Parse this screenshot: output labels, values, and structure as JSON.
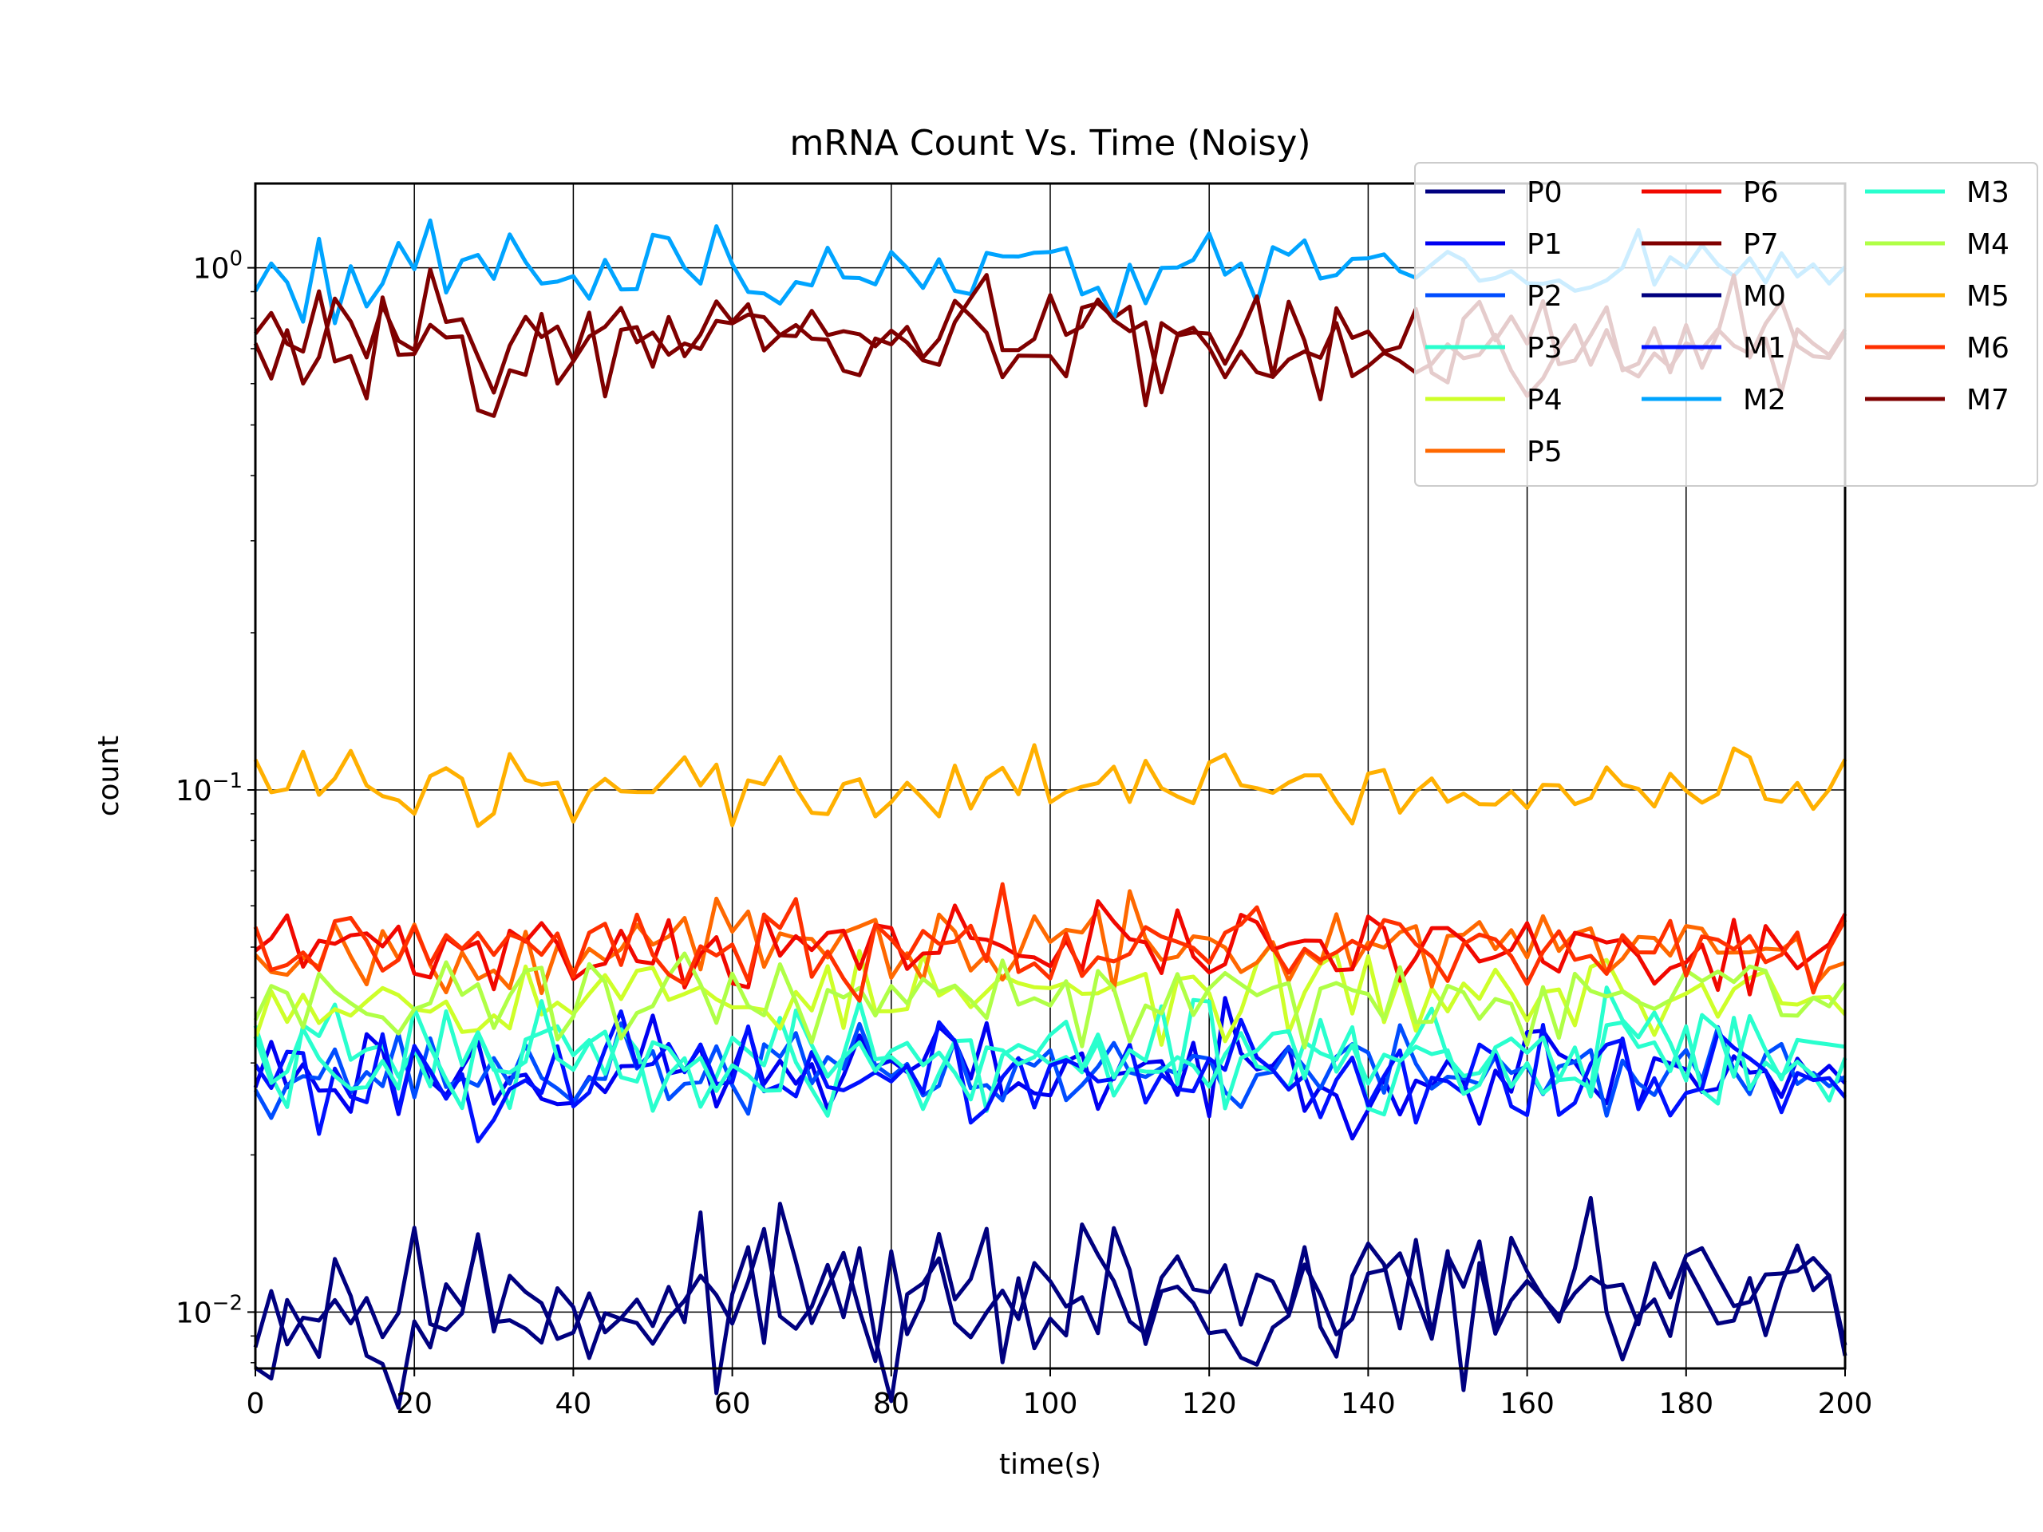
{
  "chart_data": {
    "type": "line",
    "title": "mRNA Count Vs. Time (Noisy)",
    "xlabel": "time(s)",
    "ylabel": "count",
    "xlim": [
      0,
      200
    ],
    "ylim": [
      0.0078,
      1.45
    ],
    "yscale": "log",
    "grid": true,
    "legend_position": "top-right",
    "x_ticks": [
      "0",
      "20",
      "40",
      "60",
      "80",
      "100",
      "120",
      "140",
      "160",
      "180",
      "200"
    ],
    "y_ticks": [
      {
        "value": 0.01,
        "base": "10",
        "exp": "−2"
      },
      {
        "value": 0.1,
        "base": "10",
        "exp": "−1"
      },
      {
        "value": 1,
        "base": "10",
        "exp": "0"
      }
    ],
    "series": [
      {
        "name": "P0",
        "color": "#000080",
        "level": 0.0105,
        "noise": 0.07,
        "seed": 11
      },
      {
        "name": "P1",
        "color": "#0000f1",
        "level": 0.029,
        "noise": 0.05,
        "seed": 23
      },
      {
        "name": "P2",
        "color": "#004dff",
        "level": 0.029,
        "noise": 0.04,
        "seed": 37
      },
      {
        "name": "P3",
        "color": "#29ffce",
        "level": 0.0305,
        "noise": 0.05,
        "seed": 41
      },
      {
        "name": "P4",
        "color": "#ceff29",
        "level": 0.0405,
        "noise": 0.04,
        "seed": 53
      },
      {
        "name": "P5",
        "color": "#ff6800",
        "level": 0.05,
        "noise": 0.04,
        "seed": 67
      },
      {
        "name": "P6",
        "color": "#f10800",
        "level": 0.05,
        "noise": 0.04,
        "seed": 71
      },
      {
        "name": "P7",
        "color": "#800000",
        "level": 0.71,
        "noise": 0.05,
        "seed": 83
      },
      {
        "name": "M0",
        "color": "#00007f",
        "level": 0.0105,
        "noise": 0.07,
        "seed": 97
      },
      {
        "name": "M1",
        "color": "#0010ff",
        "level": 0.0285,
        "noise": 0.05,
        "seed": 101
      },
      {
        "name": "M2",
        "color": "#00a4ff",
        "level": 0.99,
        "noise": 0.04,
        "seed": 113
      },
      {
        "name": "M3",
        "color": "#29ffce",
        "level": 0.031,
        "noise": 0.05,
        "seed": 127
      },
      {
        "name": "M4",
        "color": "#b0ff46",
        "level": 0.04,
        "noise": 0.04,
        "seed": 131
      },
      {
        "name": "M5",
        "color": "#ffb000",
        "level": 0.101,
        "noise": 0.04,
        "seed": 139
      },
      {
        "name": "M6",
        "color": "#ff3000",
        "level": 0.0505,
        "noise": 0.04,
        "seed": 149
      },
      {
        "name": "M7",
        "color": "#7f0000",
        "level": 0.72,
        "noise": 0.05,
        "seed": 151
      }
    ]
  }
}
